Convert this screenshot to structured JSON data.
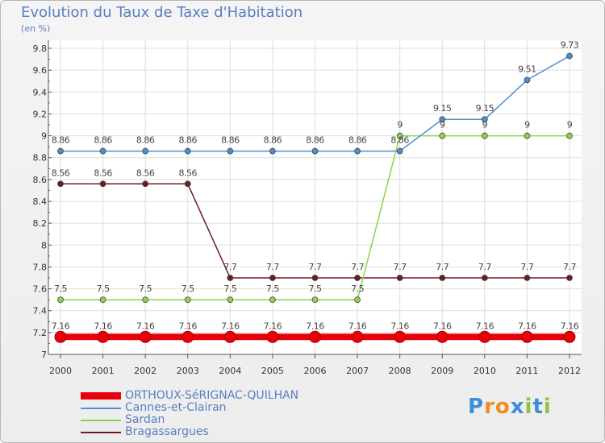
{
  "chart_data": {
    "type": "line",
    "title": "Evolution du Taux de Taxe d'Habitation",
    "ylabel": "(en %)",
    "xlabel": "",
    "ylim": [
      7,
      9.8
    ],
    "yticks": [
      "7",
      "7.2",
      "7.4",
      "7.6",
      "7.8",
      "8",
      "8.2",
      "8.4",
      "8.6",
      "8.8",
      "9",
      "9.2",
      "9.4",
      "9.6",
      "9.8"
    ],
    "categories": [
      "2000",
      "2001",
      "2002",
      "2003",
      "2004",
      "2005",
      "2006",
      "2007",
      "2008",
      "2009",
      "2010",
      "2011",
      "2012"
    ],
    "series": [
      {
        "name": "ORTHOUX-SéRIGNAC-QUILHAN",
        "color": "#e8000b",
        "values": [
          7.16,
          7.16,
          7.16,
          7.16,
          7.16,
          7.16,
          7.16,
          7.16,
          7.16,
          7.16,
          7.16,
          7.16,
          7.16
        ],
        "labels": [
          "7.16",
          "7.16",
          "7.16",
          "7.16",
          "7.16",
          "7.16",
          "7.16",
          "7.16",
          "7.16",
          "7.16",
          "7.16",
          "7.16",
          "7.16"
        ]
      },
      {
        "name": "Cannes-et-Clairan",
        "color": "#4a90d0",
        "values": [
          8.86,
          8.86,
          8.86,
          8.86,
          8.86,
          8.86,
          8.86,
          8.86,
          8.86,
          9.15,
          9.15,
          9.51,
          9.73
        ],
        "labels": [
          "8.86",
          "8.86",
          "8.86",
          "8.86",
          "8.86",
          "8.86",
          "8.86",
          "8.86",
          "8.86",
          "9.15",
          "9.15",
          "9.51",
          "9.73"
        ]
      },
      {
        "name": "Sardan",
        "color": "#8cd44a",
        "values": [
          7.5,
          7.5,
          7.5,
          7.5,
          7.5,
          7.5,
          7.5,
          7.5,
          9,
          9,
          9,
          9,
          9
        ],
        "labels": [
          "7.5",
          "7.5",
          "7.5",
          "7.5",
          "7.5",
          "7.5",
          "7.5",
          "7.5",
          "9",
          "9",
          "9",
          "9",
          "9"
        ]
      },
      {
        "name": "Bragassargues",
        "color": "#6a1e22",
        "values": [
          8.56,
          8.56,
          8.56,
          8.56,
          7.7,
          7.7,
          7.7,
          7.7,
          7.7,
          7.7,
          7.7,
          7.7,
          7.7
        ],
        "labels": [
          "8.56",
          "8.56",
          "8.56",
          "8.56",
          "7.7",
          "7.7",
          "7.7",
          "7.7",
          "7.7",
          "7.7",
          "7.7",
          "7.7",
          "7.7"
        ]
      }
    ],
    "legend": "bottom-left"
  },
  "brand": {
    "letters": [
      "P",
      "r",
      "o",
      "x",
      "i",
      "t",
      "i"
    ],
    "colors": [
      "#3a8fd8",
      "#f28c1e",
      "#f28c1e",
      "#3a8fd8",
      "#8cc63f",
      "#3a8fd8",
      "#8cc63f"
    ]
  }
}
